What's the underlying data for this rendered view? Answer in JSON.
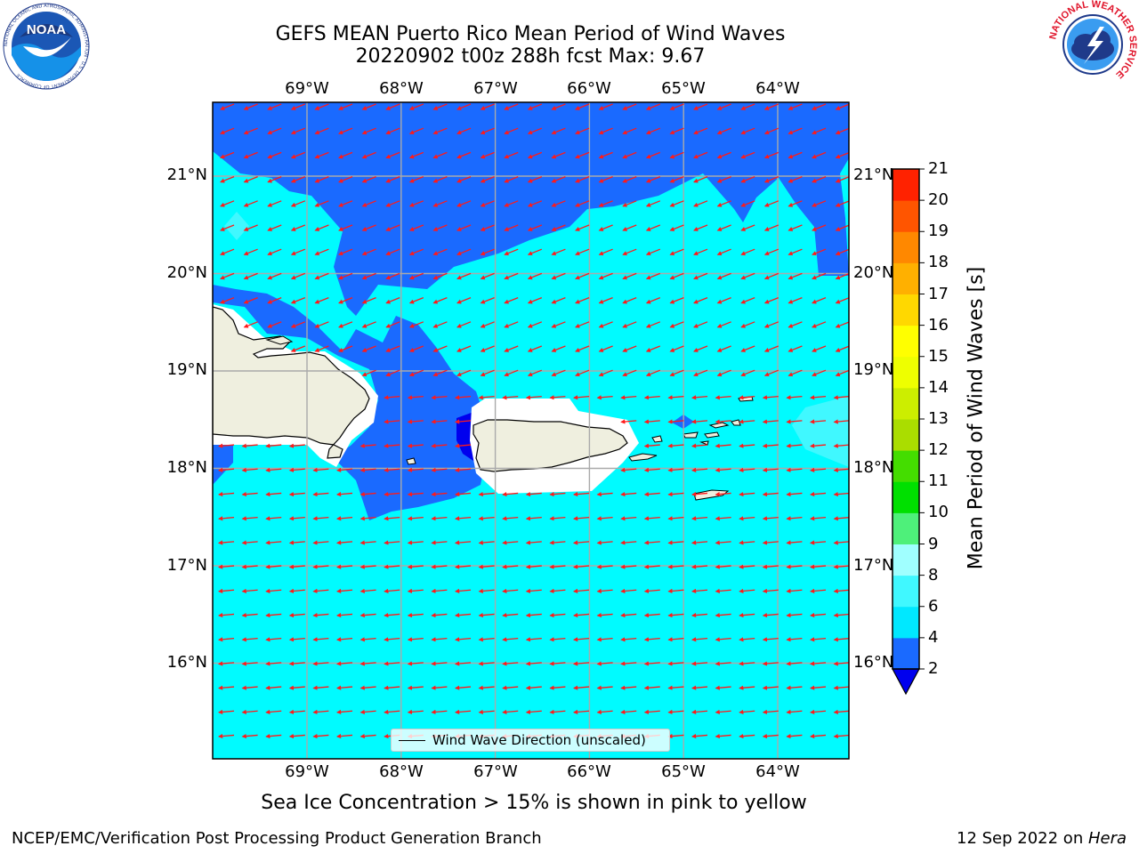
{
  "title": {
    "line1": "GEFS MEAN Puerto Rico Mean Period of Wind Waves",
    "line2": "20220902 t00z 288h fcst   Max: 9.67"
  },
  "logos": {
    "left": "NOAA",
    "left_ring": "NATIONAL OCEANIC AND ATMOSPHERIC ADMINISTRATION · U.S. DEPARTMENT OF COMMERCE",
    "right_ring": "NATIONAL WEATHER SERVICE"
  },
  "lon_labels": [
    "69°W",
    "68°W",
    "67°W",
    "66°W",
    "65°W",
    "64°W"
  ],
  "lat_labels": [
    "21°N",
    "20°N",
    "19°N",
    "18°N",
    "17°N",
    "16°N"
  ],
  "legend": {
    "label": "Wind Wave Direction (unscaled)"
  },
  "colorbar": {
    "label": "Mean Period of Wind Waves [s]",
    "ticks": [
      "2",
      "4",
      "6",
      "8",
      "9",
      "10",
      "11",
      "12",
      "13",
      "14",
      "15",
      "16",
      "17",
      "18",
      "19",
      "20",
      "21"
    ],
    "colors": [
      "#1a6aff",
      "#00e8ff",
      "#40f8ff",
      "#a0ffff",
      "#4ef07a",
      "#00e000",
      "#44dd00",
      "#aadd00",
      "#ccee00",
      "#eeff00",
      "#ffff00",
      "#ffd800",
      "#ffb000",
      "#ff8800",
      "#ff5500",
      "#ff2200",
      "#ff0000"
    ],
    "under_color": "#0000ee"
  },
  "colors": {
    "ocean_high": "#00fbff",
    "ocean_low": "#1a6aff",
    "ocean_mid": "#40f8ff",
    "land": "#efefdf",
    "arrow": "#ff1a1a",
    "grid": "#aaaaaa"
  },
  "footer": {
    "note": "Sea Ice Concentration > 15% is shown in pink to yellow",
    "left": "NCEP/EMC/Verification Post Processing Product Generation Branch",
    "right_date": "12 Sep 2022 on ",
    "right_machine": "Hera"
  }
}
